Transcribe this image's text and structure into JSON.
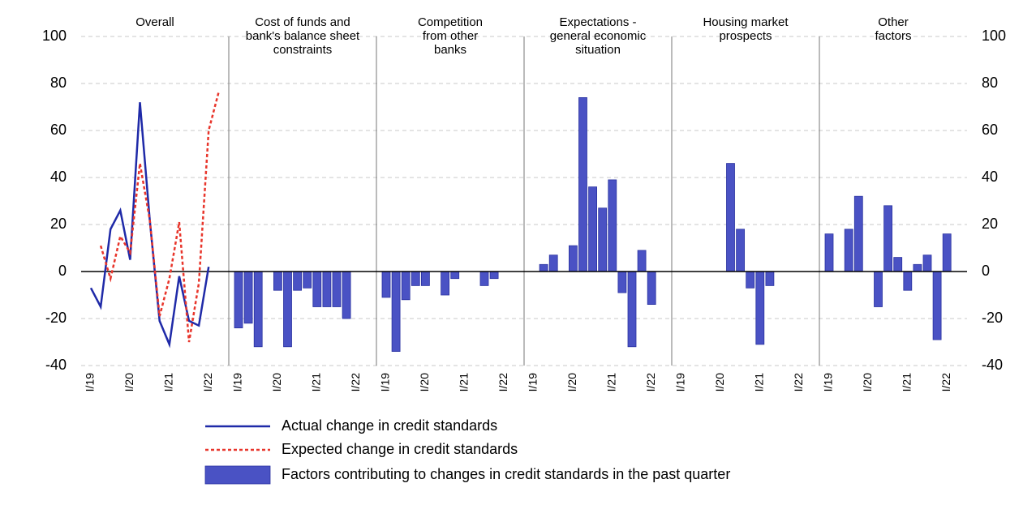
{
  "y_axis": {
    "ylim": [
      -40,
      100
    ],
    "yticks": [
      -40,
      -20,
      0,
      20,
      40,
      60,
      80,
      100
    ]
  },
  "bar_legend": {
    "name": "Factors contributing to changes in credit standards in the past quarter",
    "color": "#4a52c4"
  },
  "chart_data": [
    {
      "type": "line",
      "title": [
        "Overall"
      ],
      "categories": [
        "I/19",
        null,
        null,
        null,
        "I/20",
        null,
        null,
        null,
        "I/21",
        null,
        null,
        null,
        "I/22",
        null
      ],
      "series": [
        {
          "name": "Actual change in credit standards",
          "color": "#1f2aa8",
          "dashed": false,
          "values": [
            -7,
            -15,
            18,
            26,
            5,
            72,
            22,
            -21,
            -31,
            -2,
            -21,
            -23,
            2,
            null
          ]
        },
        {
          "name": "Expected change in credit standards",
          "color": "#e8352b",
          "dashed": true,
          "values": [
            null,
            11,
            -3,
            15,
            8,
            46,
            22,
            -19,
            -3,
            21,
            -30,
            -5,
            60,
            76
          ]
        }
      ]
    },
    {
      "type": "bar",
      "title": [
        "Cost of funds and",
        "bank's balance sheet",
        "constraints"
      ],
      "categories": [
        "I/19",
        null,
        null,
        null,
        "I/20",
        null,
        null,
        null,
        "I/21",
        null,
        null,
        null,
        "I/22"
      ],
      "values": [
        -24,
        -22,
        -32,
        0,
        -8,
        -32,
        -8,
        -7,
        -15,
        -15,
        -15,
        -20,
        0
      ]
    },
    {
      "type": "bar",
      "title": [
        "Competition",
        "from other",
        "banks"
      ],
      "categories": [
        "I/19",
        null,
        null,
        null,
        "I/20",
        null,
        null,
        null,
        "I/21",
        null,
        null,
        null,
        "I/22"
      ],
      "values": [
        -11,
        -34,
        -12,
        -6,
        -6,
        0,
        -10,
        -3,
        0,
        0,
        -6,
        -3,
        0
      ]
    },
    {
      "type": "bar",
      "title": [
        "Expectations -",
        "general economic",
        "situation"
      ],
      "categories": [
        "I/19",
        null,
        null,
        null,
        "I/20",
        null,
        null,
        null,
        "I/21",
        null,
        null,
        null,
        "I/22"
      ],
      "values": [
        0,
        3,
        7,
        0,
        11,
        74,
        36,
        27,
        39,
        -9,
        -32,
        9,
        -14
      ]
    },
    {
      "type": "bar",
      "title": [
        "Housing market",
        "prospects"
      ],
      "categories": [
        "I/19",
        null,
        null,
        null,
        "I/20",
        null,
        null,
        null,
        "I/21",
        null,
        null,
        null,
        "I/22"
      ],
      "values": [
        0,
        0,
        0,
        0,
        0,
        46,
        18,
        -7,
        -31,
        -6,
        0,
        0,
        0
      ]
    },
    {
      "type": "bar",
      "title": [
        "Other",
        "factors"
      ],
      "categories": [
        "I/19",
        null,
        null,
        null,
        "I/20",
        null,
        null,
        null,
        "I/21",
        null,
        null,
        null,
        "I/22"
      ],
      "values": [
        16,
        0,
        18,
        32,
        0,
        -15,
        28,
        6,
        -8,
        3,
        7,
        -29,
        16
      ]
    }
  ]
}
